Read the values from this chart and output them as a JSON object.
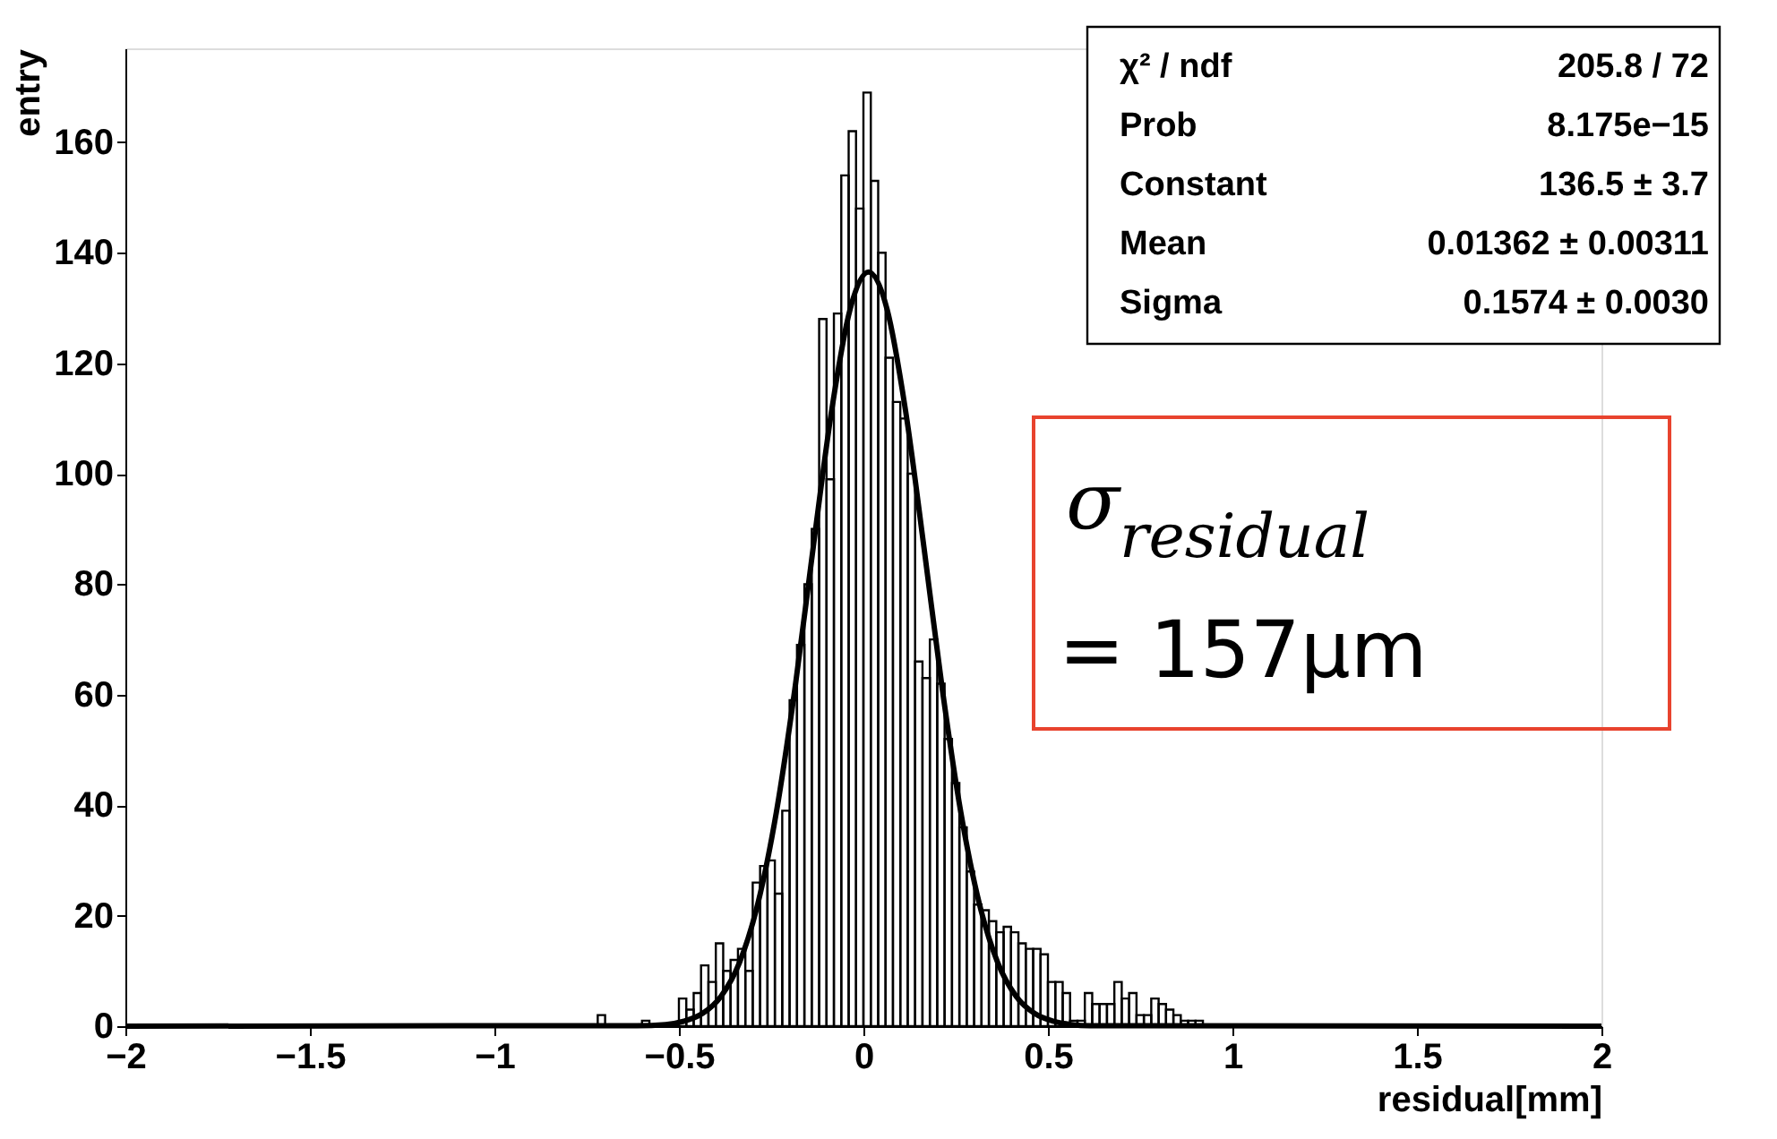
{
  "chart_data": {
    "type": "histogram",
    "xlabel": "residual[mm]",
    "ylabel": "entry",
    "xlim": [
      -2,
      2
    ],
    "xticks": [
      -2,
      -1.5,
      -1,
      -0.5,
      0,
      0.5,
      1,
      1.5,
      2
    ],
    "ylim": [
      0,
      177
    ],
    "yticks": [
      0,
      20,
      40,
      60,
      80,
      100,
      120,
      140,
      160
    ],
    "grid": false,
    "series": [
      {
        "color": "#000000",
        "bins": [
          -2,
          -0.72,
          -0.7,
          -0.6,
          -0.58,
          -0.5,
          -0.48,
          -0.46,
          -0.44,
          -0.42,
          -0.4,
          -0.38,
          -0.36,
          -0.34,
          -0.32,
          -0.3,
          -0.28,
          -0.26,
          -0.24,
          -0.22,
          -0.2,
          -0.18,
          -0.16,
          -0.14,
          -0.12,
          -0.1,
          -0.08,
          -0.06,
          -0.04,
          -0.02,
          0,
          0.02,
          0.04,
          0.06,
          0.08,
          0.1,
          0.12,
          0.14,
          0.16,
          0.18,
          0.2,
          0.22,
          0.24,
          0.26,
          0.28,
          0.3,
          0.32,
          0.34,
          0.36,
          0.38,
          0.4,
          0.42,
          0.44,
          0.46,
          0.48,
          0.5,
          0.52,
          0.54,
          0.56,
          0.58,
          0.6,
          0.62,
          0.64,
          0.66,
          0.68,
          0.7,
          0.72,
          0.74,
          0.76,
          0.78,
          0.8,
          0.82,
          0.84,
          0.86,
          0.88,
          0.9,
          0.92,
          2
        ],
        "values": [
          0,
          2,
          0,
          1,
          0,
          5,
          3,
          6,
          11,
          8,
          15,
          10,
          12,
          14,
          10,
          26,
          29,
          30,
          24,
          39,
          59,
          69,
          80,
          90,
          128,
          99,
          129,
          154,
          162,
          148,
          169,
          153,
          140,
          121,
          113,
          110,
          100,
          66,
          63,
          70,
          62,
          52,
          44,
          36,
          28,
          22,
          21,
          19,
          17,
          18,
          17,
          15,
          14,
          14,
          13,
          8,
          8,
          6,
          1,
          1,
          6,
          4,
          4,
          4,
          8,
          5,
          6,
          2,
          2,
          5,
          4,
          3,
          2,
          1,
          1,
          1,
          0
        ]
      },
      {
        "type": "line",
        "color": "#000000",
        "x": [
          -2,
          -0.614,
          -0.536,
          -0.486,
          -0.436,
          -0.386,
          -0.336,
          -0.286,
          -0.236,
          -0.186,
          -0.136,
          -0.086,
          -0.036,
          0.014,
          0.064,
          0.114,
          0.164,
          0.214,
          0.264,
          0.314,
          0.364,
          0.414,
          0.464,
          0.514,
          0.564,
          0.614,
          2
        ],
        "values": [
          0,
          0.1,
          0.3,
          0.9,
          2.3,
          5.4,
          11.5,
          22.2,
          38.7,
          60.9,
          86.7,
          111.5,
          129.8,
          136.5,
          129.8,
          111.5,
          86.7,
          60.9,
          38.7,
          22.2,
          11.5,
          5.4,
          2.3,
          0.9,
          0.3,
          0.1,
          0
        ]
      }
    ],
    "annotations": [
      "χ² / ndf",
      "205.8 / 72",
      "Prob",
      "8.175e−15",
      "Constant",
      "136.5 ± 3.7",
      "Mean",
      "0.01362 ± 0.00311",
      "Sigma",
      "0.1574 ± 0.0030",
      "σ$_{residual}$ = 157μm"
    ]
  }
}
